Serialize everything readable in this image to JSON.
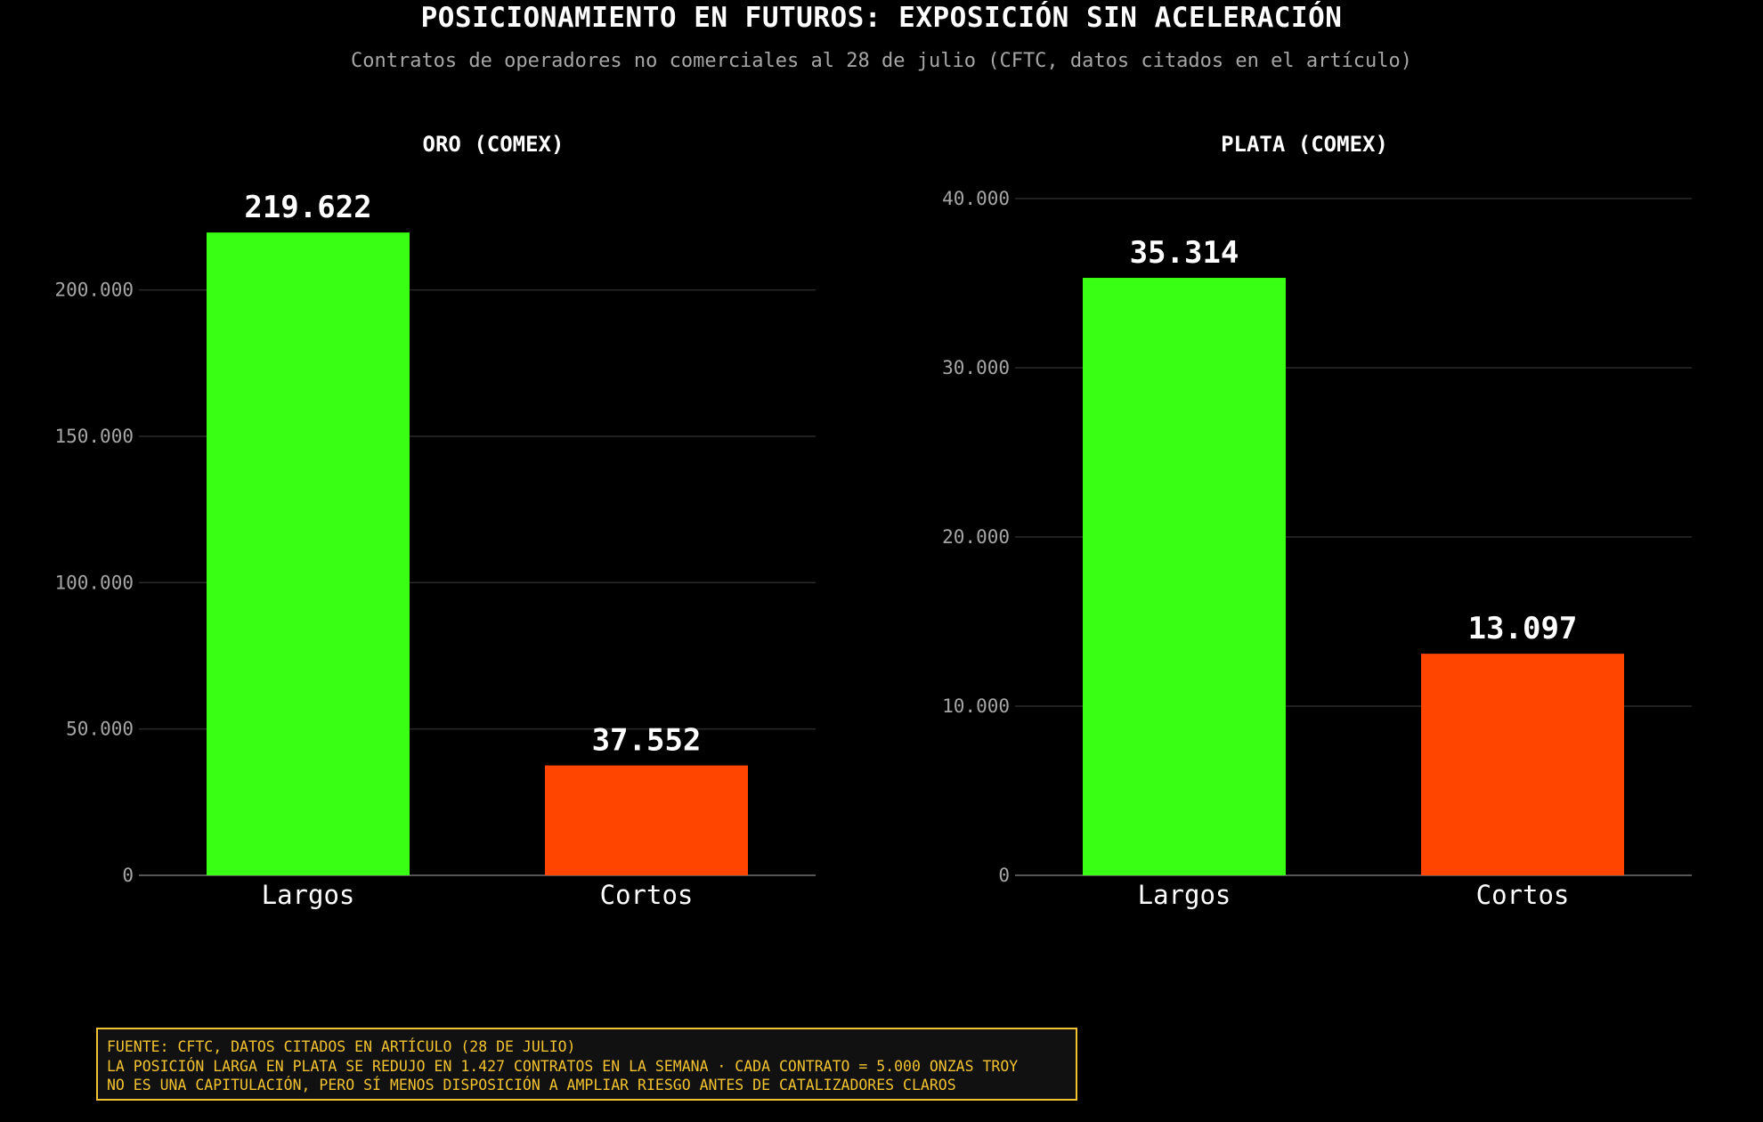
{
  "title": "POSICIONAMIENTO EN FUTUROS: EXPOSICIÓN SIN ACELERACIÓN",
  "subtitle": "Contratos de operadores no comerciales al 28 de julio (CFTC, datos citados en el artículo)",
  "colors": {
    "background": "#000000",
    "longs": "#39ff14",
    "shorts": "#ff4500",
    "grid": "#2a2a2a",
    "axis": "#555555",
    "note": "#f2c230"
  },
  "chart_data": [
    {
      "type": "bar",
      "title": "ORO (COMEX)",
      "categories": [
        "Largos",
        "Cortos"
      ],
      "values": [
        219622,
        37552
      ],
      "value_labels": [
        "219.622",
        "37.552"
      ],
      "ylim": [
        0,
        237000
      ],
      "yticks": [
        0,
        50000,
        100000,
        150000,
        200000
      ],
      "ytick_labels": [
        "0",
        "50.000",
        "100.000",
        "150.000",
        "200.000"
      ],
      "grid": true
    },
    {
      "type": "bar",
      "title": "PLATA (COMEX)",
      "categories": [
        "Largos",
        "Cortos"
      ],
      "values": [
        35314,
        13097
      ],
      "value_labels": [
        "35.314",
        "13.097"
      ],
      "ylim": [
        0,
        41000
      ],
      "yticks": [
        0,
        10000,
        20000,
        30000,
        40000
      ],
      "ytick_labels": [
        "0",
        "10.000",
        "20.000",
        "30.000",
        "40.000"
      ],
      "grid": true
    }
  ],
  "note": {
    "lines": [
      "FUENTE: CFTC, DATOS CITADOS EN ARTÍCULO (28 DE JULIO)",
      "LA POSICIÓN LARGA EN PLATA SE REDUJO EN 1.427 CONTRATOS EN LA SEMANA · CADA CONTRATO = 5.000 ONZAS TROY",
      "NO ES UNA CAPITULACIÓN, PERO SÍ MENOS DISPOSICIÓN A AMPLIAR RIESGO ANTES DE CATALIZADORES CLAROS"
    ]
  }
}
